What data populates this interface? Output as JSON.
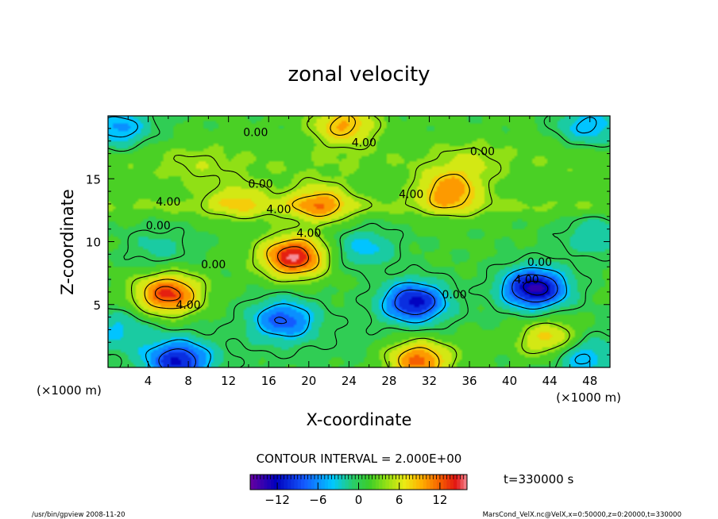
{
  "chart_data": {
    "type": "heatmap",
    "title": "zonal velocity",
    "xlabel": "X-coordinate",
    "ylabel": "Z-coordinate",
    "x_unit_left": "(×1000 m)",
    "x_unit_right": "(×1000 m)",
    "xlim": [
      0,
      50
    ],
    "ylim": [
      0,
      20
    ],
    "x_ticks": [
      "4",
      "8",
      "12",
      "16",
      "20",
      "24",
      "28",
      "32",
      "36",
      "40",
      "44",
      "48"
    ],
    "y_ticks": [
      "5",
      "10",
      "15"
    ],
    "contour_labels": [
      {
        "x": 14.7,
        "y": 18.7,
        "text": "0.00"
      },
      {
        "x": 25.5,
        "y": 17.9,
        "text": "4.00"
      },
      {
        "x": 37.3,
        "y": 17.2,
        "text": "0.00"
      },
      {
        "x": 15.2,
        "y": 14.6,
        "text": "0.00"
      },
      {
        "x": 30.2,
        "y": 13.8,
        "text": "4.00"
      },
      {
        "x": 6.0,
        "y": 13.2,
        "text": "4.00"
      },
      {
        "x": 17.0,
        "y": 12.6,
        "text": "4.00"
      },
      {
        "x": 5.0,
        "y": 11.3,
        "text": "0.00"
      },
      {
        "x": 20.0,
        "y": 10.7,
        "text": "4.00"
      },
      {
        "x": 10.5,
        "y": 8.2,
        "text": "0.00"
      },
      {
        "x": 43.0,
        "y": 8.4,
        "text": "0.00"
      },
      {
        "x": 41.7,
        "y": 7.0,
        "text": "4.00"
      },
      {
        "x": 34.5,
        "y": 5.8,
        "text": "0.00"
      },
      {
        "x": 8.0,
        "y": 5.0,
        "text": "4.00"
      }
    ],
    "contour_interval_text": "CONTOUR INTERVAL = 2.000E+00",
    "time_label": "t=330000 s",
    "colorbar": {
      "range": [
        -16,
        16
      ],
      "ticks": [
        "−12",
        "−6",
        "0",
        "6",
        "12"
      ],
      "tick_values": [
        -12,
        -6,
        0,
        6,
        12
      ]
    },
    "features": [
      {
        "x": 6.0,
        "y": 5.8,
        "value": 12.5
      },
      {
        "x": 18.5,
        "y": 8.8,
        "value": 14.0
      },
      {
        "x": 23.5,
        "y": 19.3,
        "value": 8.0
      },
      {
        "x": 31.0,
        "y": 0.6,
        "value": 11.0
      },
      {
        "x": 44.0,
        "y": 2.2,
        "value": 8.0
      },
      {
        "x": 21.0,
        "y": 13.0,
        "value": 8.0
      },
      {
        "x": 34.0,
        "y": 14.0,
        "value": 9.0
      },
      {
        "x": 13.0,
        "y": 13.3,
        "value": 5.0
      },
      {
        "x": 30.5,
        "y": 5.2,
        "value": -13.0
      },
      {
        "x": 42.5,
        "y": 6.3,
        "value": -15.0
      },
      {
        "x": 7.0,
        "y": 0.5,
        "value": -12.0
      },
      {
        "x": 17.5,
        "y": 3.8,
        "value": -9.0
      },
      {
        "x": 25.5,
        "y": 9.5,
        "value": -5.0
      },
      {
        "x": 5.0,
        "y": 9.5,
        "value": -3.0
      },
      {
        "x": 47.0,
        "y": 0.9,
        "value": -6.0
      },
      {
        "x": 1.0,
        "y": 19.0,
        "value": -7.0
      },
      {
        "x": 48.0,
        "y": 19.2,
        "value": -6.0
      },
      {
        "x": 48.5,
        "y": 10.5,
        "value": -4.0
      },
      {
        "x": 9.0,
        "y": 16.0,
        "value": 2.0
      },
      {
        "x": 36.0,
        "y": 16.5,
        "value": 2.5
      },
      {
        "x": 1.0,
        "y": 3.0,
        "value": -4.0
      },
      {
        "x": 37.0,
        "y": 2.0,
        "value": 1.0
      }
    ]
  },
  "footer": {
    "left": "/usr/bin/gpview   2008-11-20",
    "right": "MarsCond_VelX.nc@VelX,x=0:50000,z=0:20000,t=330000"
  }
}
